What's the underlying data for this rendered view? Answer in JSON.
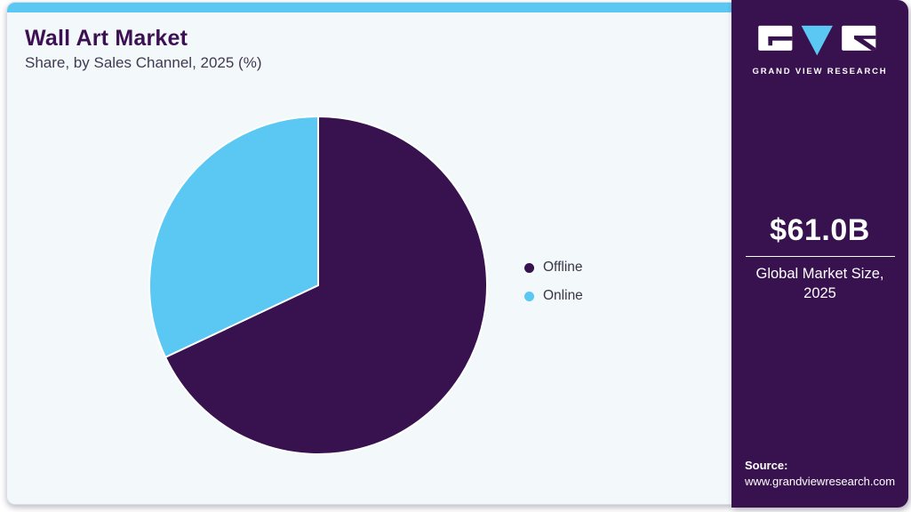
{
  "header": {
    "title": "Wall Art Market",
    "subtitle": "Share, by Sales Channel, 2025 (%)"
  },
  "chart_data": {
    "type": "pie",
    "title": "Wall Art Market Share, by Sales Channel, 2025 (%)",
    "labels": [
      "Offline",
      "Online"
    ],
    "values": [
      68,
      32
    ],
    "unit": "%",
    "colors": [
      "#38114f",
      "#5bc8f4"
    ],
    "start_angle_deg": 0,
    "direction": "clockwise",
    "legend_position": "right",
    "slice_separator_color": "#ffffff"
  },
  "sidebar": {
    "brand": "GRAND VIEW RESEARCH",
    "market_size": "$61.0B",
    "caption_line1": "Global Market Size,",
    "caption_line2": "2025",
    "source_label": "Source:",
    "source_url": "www.grandviewresearch.com"
  },
  "icons": {
    "logo": [
      "gvr-g-block",
      "gvr-v-triangle",
      "gvr-r-block"
    ]
  },
  "colors": {
    "accent_blue": "#5bc8f4",
    "brand_purple": "#38114f",
    "title_purple": "#3c1053",
    "card_background": "#f3f8fb",
    "card_border": "#d9dfe7",
    "text_dark": "#3a3547"
  }
}
